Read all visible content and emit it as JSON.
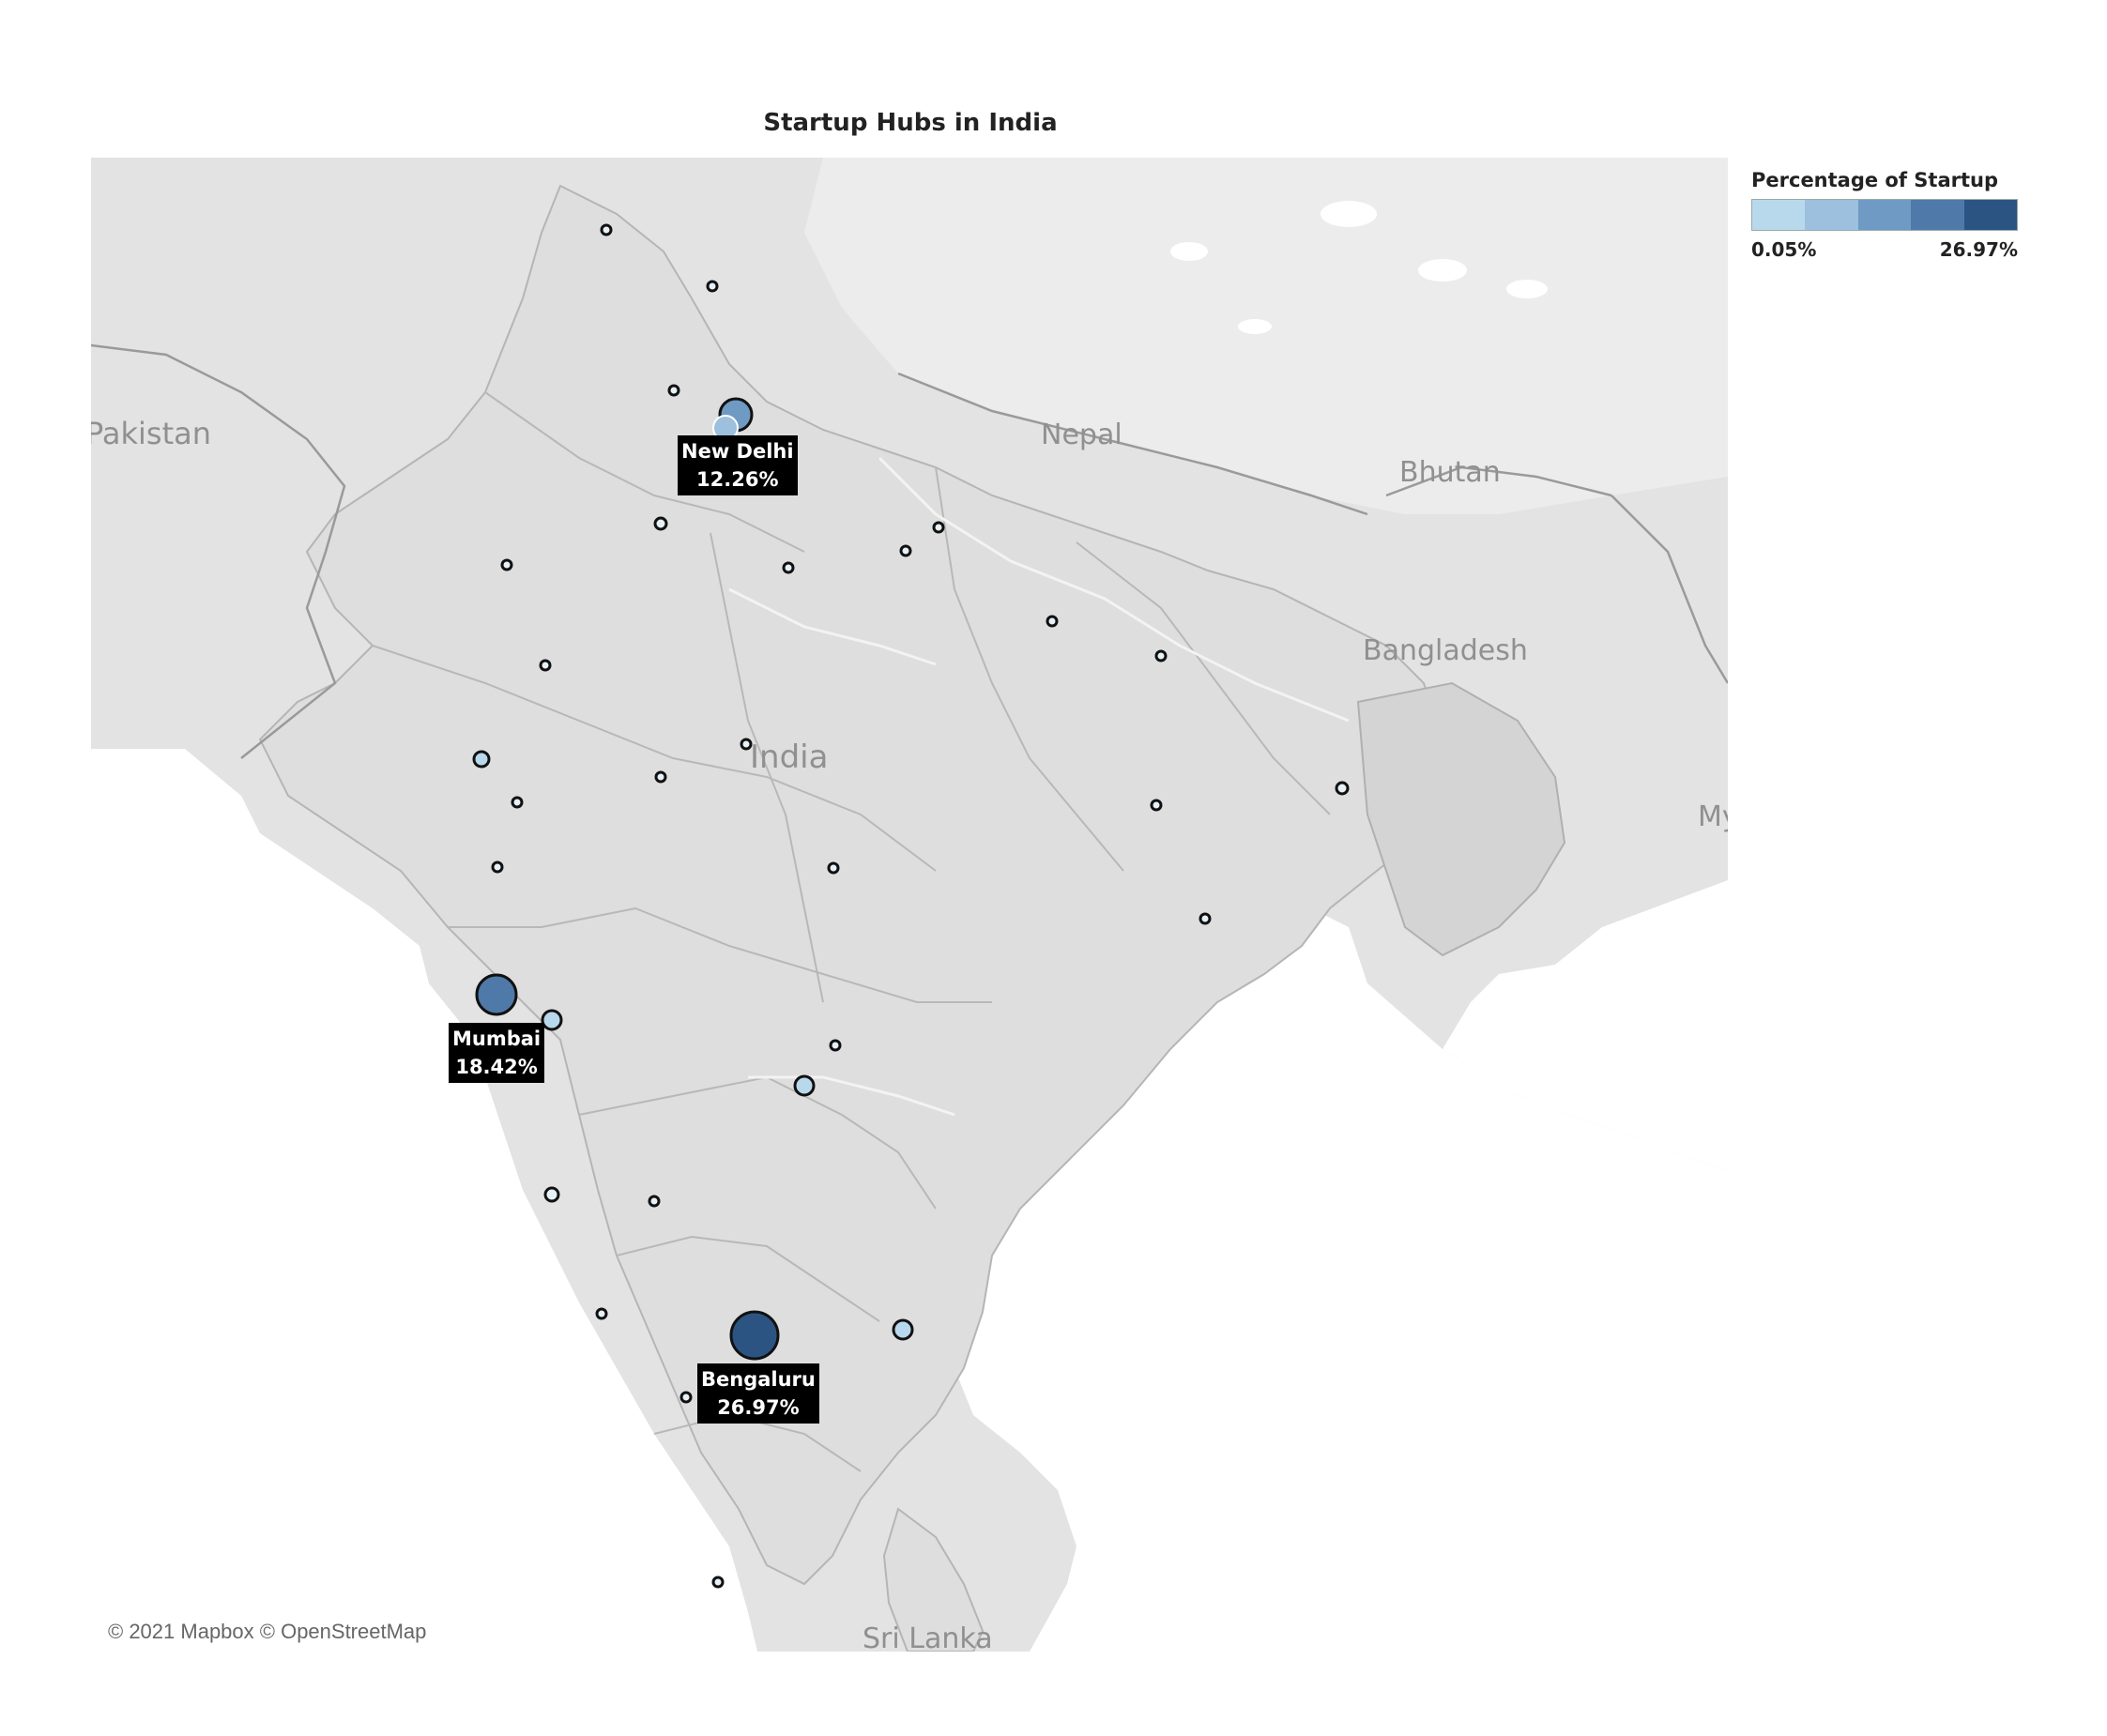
{
  "title": "Startup Hubs in India",
  "attribution": "© 2021 Mapbox © OpenStreetMap",
  "legend": {
    "title": "Percentage of Startup",
    "min_label": "0.05%",
    "max_label": "26.97%",
    "colors": [
      "#b8d8ec",
      "#9cc0dd",
      "#6f9ac4",
      "#4f79a8",
      "#2c5482"
    ]
  },
  "country_labels": [
    {
      "name": "Pakistan"
    },
    {
      "name": "Nepal"
    },
    {
      "name": "Bhutan"
    },
    {
      "name": "Bangladesh"
    },
    {
      "name": "India"
    },
    {
      "name": "Sri Lanka"
    },
    {
      "name": "My"
    }
  ],
  "hubs": [
    {
      "city": "New Delhi",
      "value": "12.26%"
    },
    {
      "city": "Mumbai",
      "value": "18.42%"
    },
    {
      "city": "Bengaluru",
      "value": "26.97%"
    }
  ],
  "colors": {
    "map_land": "#e6e6e6",
    "map_water": "#ffffff",
    "region_land": "#d9d9d9",
    "borders": "#a8a8a8",
    "marker_outline": "#111111"
  }
}
